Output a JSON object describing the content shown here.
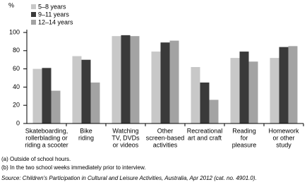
{
  "chart_data": {
    "type": "bar",
    "y_label": "%",
    "categories": [
      [
        "Skateboarding,",
        "rollerblading or",
        "riding a scooter"
      ],
      [
        "Bike",
        "riding"
      ],
      [
        "Watching",
        "TV, DVDs",
        "or videos"
      ],
      [
        "Other",
        "screen-based",
        "activities"
      ],
      [
        "Recreational",
        "art and craft"
      ],
      [
        "Reading",
        "for",
        "pleasure"
      ],
      [
        "Homework",
        "or other",
        "study"
      ]
    ],
    "series": [
      {
        "name": "5–8 years",
        "color": "#c8c8c8",
        "values": [
          60,
          74,
          96,
          79,
          62,
          72,
          72
        ]
      },
      {
        "name": "9–11 years",
        "color": "#3a3a3a",
        "values": [
          61,
          70,
          97,
          89,
          45,
          79,
          84
        ]
      },
      {
        "name": "12–14 years",
        "color": "#a3a3a3",
        "values": [
          36,
          45,
          96,
          91,
          26,
          68,
          85
        ]
      }
    ],
    "ylim": [
      0,
      100
    ],
    "yticks": [
      0,
      20,
      40,
      60,
      80,
      100
    ],
    "legend": "top-left",
    "notes": [
      "(a) Outside of school hours.",
      "(b) In the two school weeks immediately prior to interview."
    ],
    "source": "Source: Children's Participation in Cultural and Leisure Activities, Australia, Apr 2012 (cat. no. 4901.0)."
  }
}
